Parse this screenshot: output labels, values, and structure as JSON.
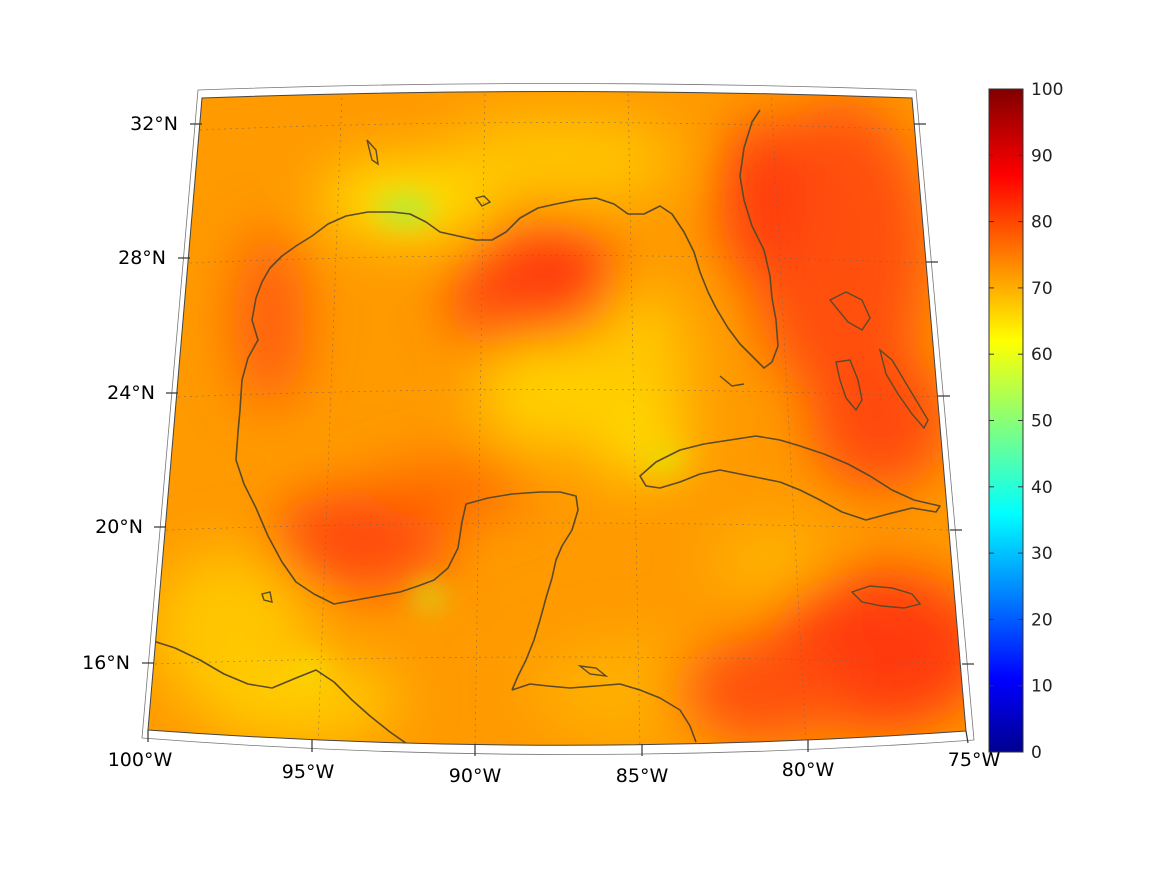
{
  "map": {
    "lon_labels": [
      "100°W",
      "95°W",
      "90°W",
      "85°W",
      "80°W",
      "75°W"
    ],
    "lat_labels": [
      "32°N",
      "28°N",
      "24°N",
      "20°N",
      "16°N"
    ],
    "colorbar": {
      "min": 0,
      "max": 100,
      "tick_labels": [
        "100",
        "90",
        "80",
        "70",
        "60",
        "50",
        "40",
        "30",
        "20",
        "10",
        "0"
      ],
      "colormap": "jet"
    },
    "colors": {
      "background": "#ffffff",
      "coastline": "#5a4a2a",
      "field_low": "#f6b300",
      "field_mid": "#ff9a00",
      "field_high": "#ff4a10"
    }
  }
}
